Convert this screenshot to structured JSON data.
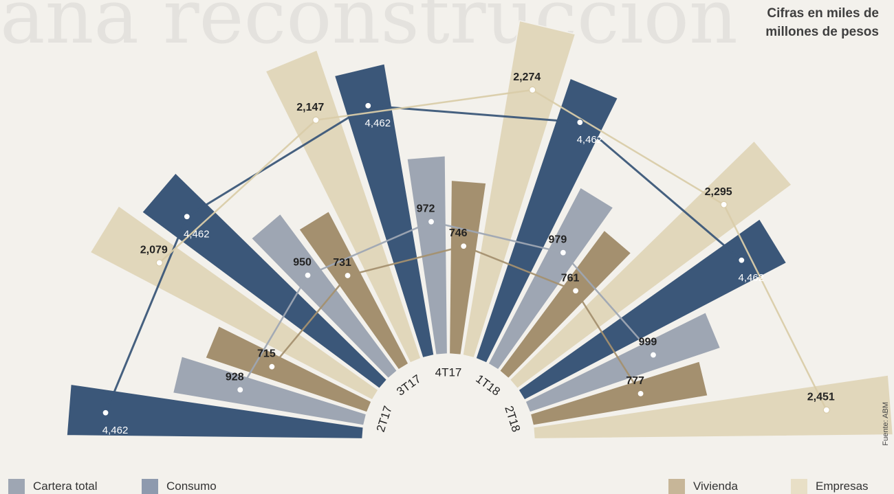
{
  "header_note": {
    "line1": "Cifras en miles de",
    "line2": "millones de pesos"
  },
  "source": "Fuente: ABM",
  "colors": {
    "Cartera total": "#3b5779",
    "Consumo": "#9ea6b3",
    "Vivienda": "#a4906f",
    "Empresas": "#e1d7bb"
  },
  "chart_data": {
    "type": "radial-bar",
    "categories": [
      "2T17",
      "3T17",
      "4T17",
      "1T18",
      "2T18"
    ],
    "series": [
      {
        "name": "Cartera total",
        "values": [
          4462,
          4462,
          4462,
          4462,
          4462
        ]
      },
      {
        "name": "Consumo",
        "values": [
          928,
          950,
          972,
          979,
          999
        ]
      },
      {
        "name": "Vivienda",
        "values": [
          715,
          731,
          746,
          761,
          777
        ]
      },
      {
        "name": "Empresas",
        "values": [
          2079,
          2147,
          2274,
          2295,
          2451
        ]
      }
    ],
    "data_labels": {
      "Cartera total": [
        "4,462",
        "4,462",
        "4,462",
        "4,462",
        "4,462"
      ],
      "Consumo": [
        "928",
        "950",
        "972",
        "979",
        "999"
      ],
      "Vivienda": [
        "715",
        "731",
        "746",
        "761",
        "777"
      ],
      "Empresas": [
        "2,079",
        "2,147",
        "2,274",
        "2,295",
        "2,451"
      ]
    },
    "legend": [
      "Cartera total",
      "Consumo",
      "Vivienda",
      "Empresas"
    ]
  }
}
